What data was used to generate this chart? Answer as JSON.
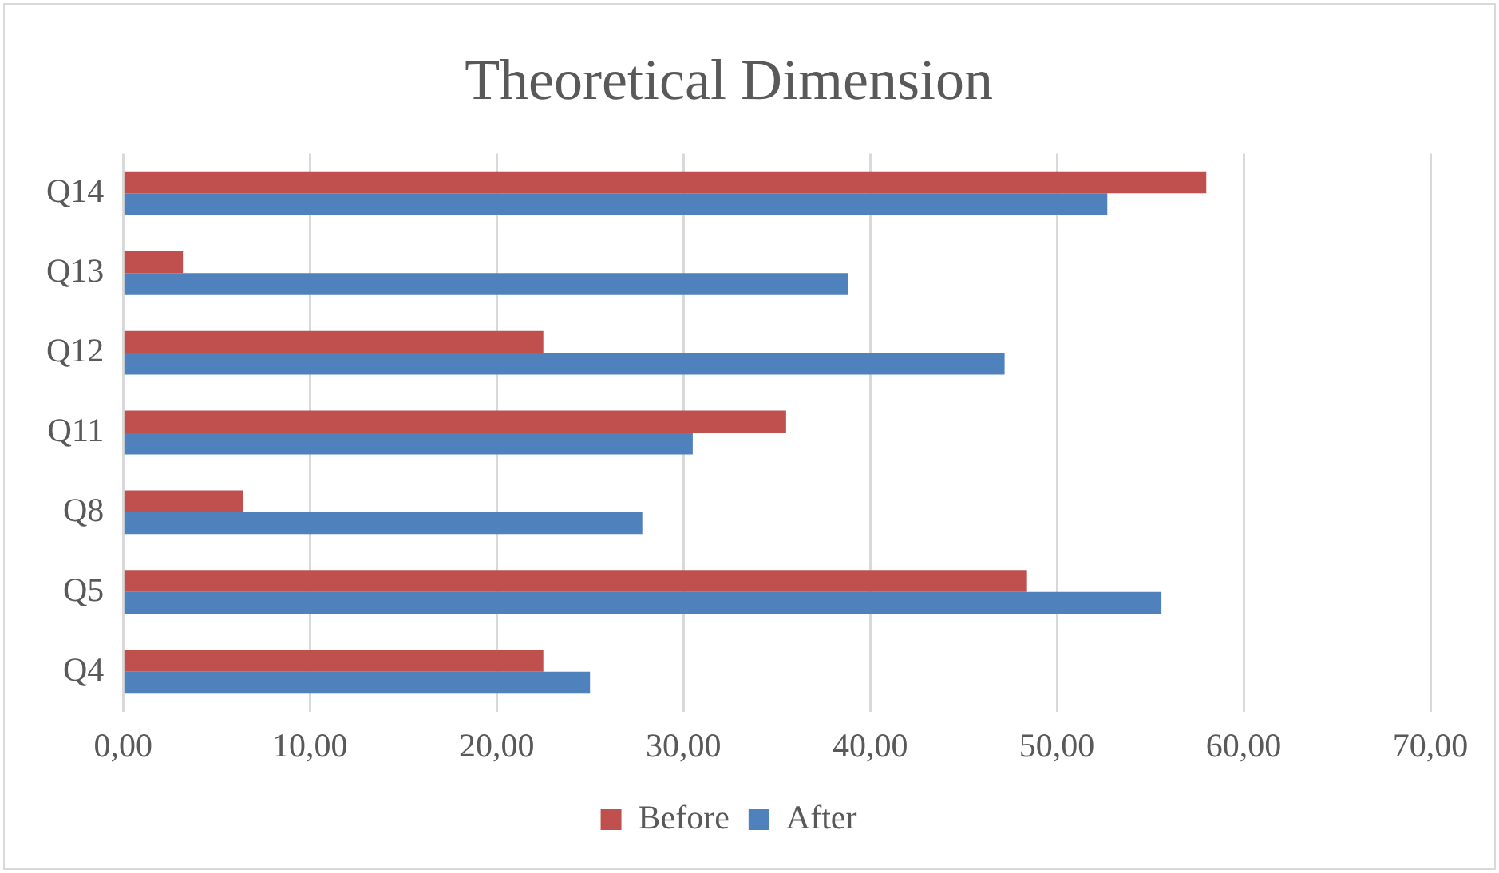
{
  "chart_data": {
    "type": "bar",
    "orientation": "horizontal",
    "title": "Theoretical Dimension",
    "categories": [
      "Q14",
      "Q13",
      "Q12",
      "Q11",
      "Q8",
      "Q5",
      "Q4"
    ],
    "series": [
      {
        "name": "Before",
        "color": "#c0504d",
        "values": [
          58.0,
          3.2,
          22.5,
          35.5,
          6.4,
          48.4,
          22.5
        ]
      },
      {
        "name": "After",
        "color": "#4f81bd",
        "values": [
          52.7,
          38.8,
          47.2,
          30.5,
          27.8,
          55.6,
          25.0
        ]
      }
    ],
    "xlim": [
      0,
      70
    ],
    "xticks": [
      {
        "value": 0,
        "label": "0,00"
      },
      {
        "value": 10,
        "label": "10,00"
      },
      {
        "value": 20,
        "label": "20,00"
      },
      {
        "value": 30,
        "label": "30,00"
      },
      {
        "value": 40,
        "label": "40,00"
      },
      {
        "value": 50,
        "label": "50,00"
      },
      {
        "value": 60,
        "label": "60,00"
      },
      {
        "value": 70,
        "label": "70,00"
      }
    ],
    "grid": "x",
    "legend": "bottom"
  }
}
